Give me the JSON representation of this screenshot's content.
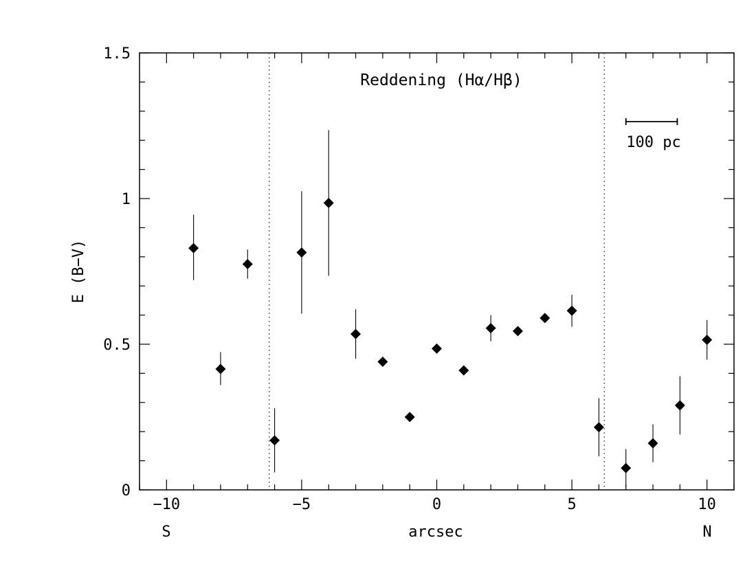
{
  "chart_data": {
    "type": "scatter",
    "title": "Reddening (Hα/Hβ)",
    "xlabel": "arcsec",
    "ylabel": "E (B−V)",
    "xlim": [
      -11,
      11
    ],
    "ylim": [
      0,
      1.5
    ],
    "x_ticks": [
      -10,
      -5,
      0,
      5,
      10
    ],
    "x_tick_labels": [
      "−10",
      "−5",
      "0",
      "5",
      "10"
    ],
    "y_ticks": [
      0,
      0.5,
      1,
      1.5
    ],
    "y_tick_labels": [
      "0",
      "0.5",
      "1",
      "1.5"
    ],
    "side_labels": {
      "left": "S",
      "right": "N"
    },
    "scale_bar": {
      "label": "100 pc",
      "x_start": 7,
      "x_end": 8.9,
      "y": 1.25
    },
    "reference_lines_x": [
      -6.2,
      6.2
    ],
    "grid": false,
    "marker": "diamond",
    "points": [
      {
        "x": -9,
        "y": 0.83,
        "err_low": 0.11,
        "err_high": 0.115
      },
      {
        "x": -8,
        "y": 0.415,
        "err_low": 0.055,
        "err_high": 0.058
      },
      {
        "x": -7,
        "y": 0.775,
        "err_low": 0.05,
        "err_high": 0.05
      },
      {
        "x": -6,
        "y": 0.17,
        "err_low": 0.11,
        "err_high": 0.11
      },
      {
        "x": -5,
        "y": 0.815,
        "err_low": 0.21,
        "err_high": 0.21
      },
      {
        "x": -4,
        "y": 0.985,
        "err_low": 0.25,
        "err_high": 0.25
      },
      {
        "x": -3,
        "y": 0.535,
        "err_low": 0.085,
        "err_high": 0.085
      },
      {
        "x": -2,
        "y": 0.44,
        "err_low": 0.0,
        "err_high": 0.0
      },
      {
        "x": -1,
        "y": 0.25,
        "err_low": 0.0,
        "err_high": 0.0
      },
      {
        "x": 0,
        "y": 0.485,
        "err_low": 0.0,
        "err_high": 0.0
      },
      {
        "x": 1,
        "y": 0.41,
        "err_low": 0.015,
        "err_high": 0.015
      },
      {
        "x": 2,
        "y": 0.555,
        "err_low": 0.045,
        "err_high": 0.045
      },
      {
        "x": 3,
        "y": 0.545,
        "err_low": 0.0,
        "err_high": 0.0
      },
      {
        "x": 4,
        "y": 0.59,
        "err_low": 0.0,
        "err_high": 0.0
      },
      {
        "x": 5,
        "y": 0.615,
        "err_low": 0.055,
        "err_high": 0.055
      },
      {
        "x": 6,
        "y": 0.215,
        "err_low": 0.1,
        "err_high": 0.1
      },
      {
        "x": 7,
        "y": 0.075,
        "err_low": 0.065,
        "err_high": 0.065
      },
      {
        "x": 8,
        "y": 0.16,
        "err_low": 0.065,
        "err_high": 0.065
      },
      {
        "x": 9,
        "y": 0.29,
        "err_low": 0.1,
        "err_high": 0.1
      },
      {
        "x": 10,
        "y": 0.515,
        "err_low": 0.068,
        "err_high": 0.068
      }
    ]
  }
}
